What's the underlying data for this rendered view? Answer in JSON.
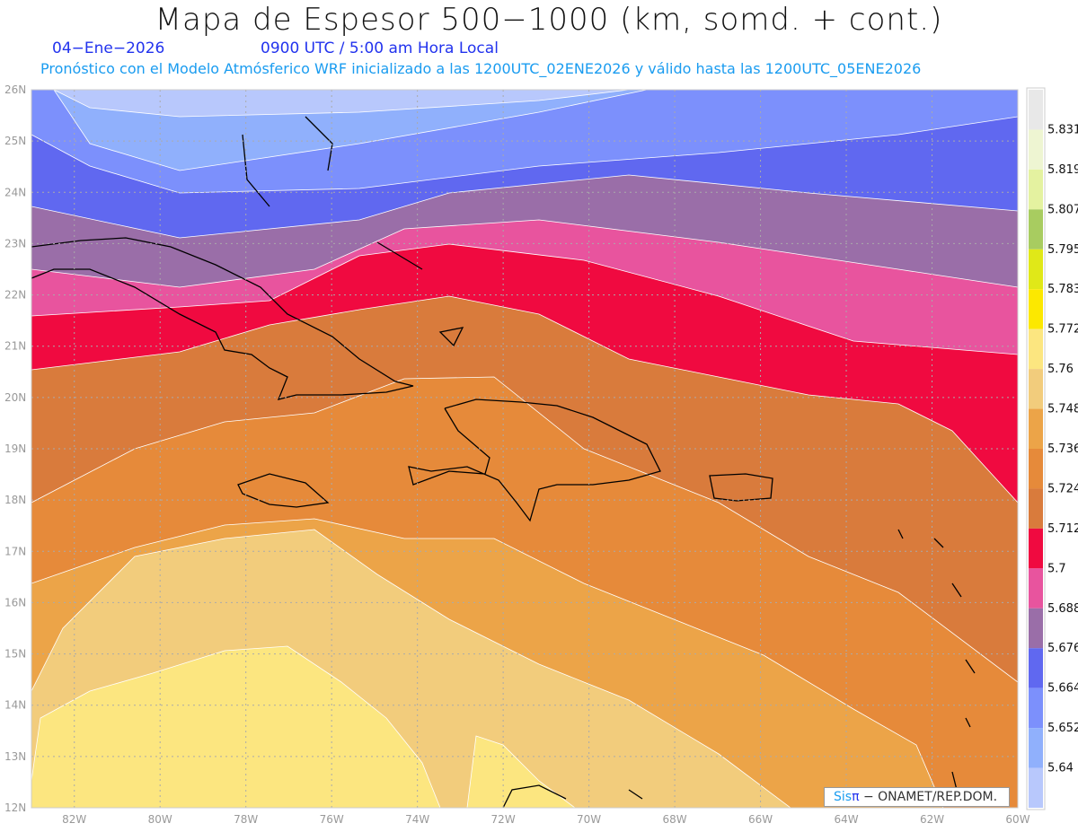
{
  "title": "Mapa de Espesor 500−1000 (km, somd. + cont.)",
  "date": "04−Ene−2026",
  "time": "0900 UTC / 5:00 am Hora Local",
  "subtitle": "Pronóstico con el Modelo Atmósferico WRF inicializado a las 1200UTC_02ENE2026 y válido hasta las  1200UTC_05ENE2026",
  "map": {
    "lon_range": [
      -83,
      -60
    ],
    "lat_range": [
      12,
      26
    ],
    "lat_labels": [
      "26N",
      "25N",
      "24N",
      "23N",
      "22N",
      "21N",
      "20N",
      "19N",
      "18N",
      "17N",
      "16N",
      "15N",
      "14N",
      "13N",
      "12N"
    ],
    "lon_labels": [
      "82W",
      "80W",
      "78W",
      "76W",
      "74W",
      "72W",
      "70W",
      "68W",
      "66W",
      "64W",
      "62W",
      "60W"
    ]
  },
  "colorbar": {
    "labels": [
      "5.831",
      "5.819",
      "5.807",
      "5.795",
      "5.783",
      "5.772",
      "5.76",
      "5.748",
      "5.736",
      "5.724",
      "5.712",
      "5.7",
      "5.688",
      "5.676",
      "5.664",
      "5.652",
      "5.64"
    ],
    "colors": [
      "#e8e8e8",
      "#eef5d2",
      "#e4f2a0",
      "#a8cc60",
      "#e0e818",
      "#fce800",
      "#fce680",
      "#f2cc7c",
      "#eca448",
      "#e68a3a",
      "#d97b3c",
      "#f00a40",
      "#e8549e",
      "#9a6ea8",
      "#6068f0",
      "#7c90fc",
      "#90b0fc",
      "#b8c8fc"
    ]
  },
  "logo": {
    "brand": "Sis",
    "pi": "π",
    "text": "− ONAMET/REP.DOM."
  }
}
